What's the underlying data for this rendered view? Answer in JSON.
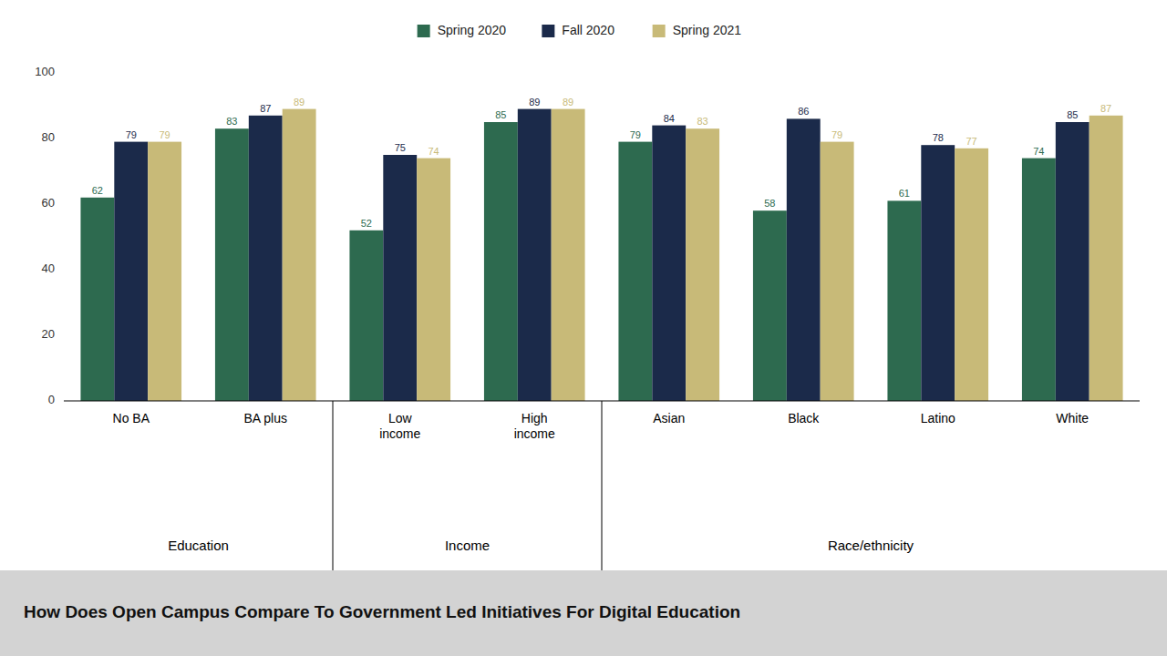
{
  "chart_data": {
    "type": "bar",
    "title": "How Does Open Campus Compare To Government Led Initiatives For Digital Education",
    "categories": [
      "No BA",
      "BA plus",
      "Low\nincome",
      "High\nincome",
      "Asian",
      "Black",
      "Latino",
      "White"
    ],
    "groups": [
      {
        "label": "Education",
        "categories": [
          "No BA",
          "BA plus"
        ]
      },
      {
        "label": "Income",
        "categories": [
          "Low\nincome",
          "High\nincome"
        ]
      },
      {
        "label": "Race/ethnicity",
        "categories": [
          "Asian",
          "Black",
          "Latino",
          "White"
        ]
      }
    ],
    "series": [
      {
        "name": "Spring 2020",
        "color": "#2d6a4f",
        "values": [
          62,
          83,
          52,
          85,
          79,
          58,
          61,
          74
        ]
      },
      {
        "name": "Fall 2020",
        "color": "#1b2a4a",
        "values": [
          79,
          87,
          75,
          89,
          84,
          86,
          78,
          85
        ]
      },
      {
        "name": "Spring 2021",
        "color": "#c8ba78",
        "values": [
          79,
          89,
          74,
          89,
          83,
          79,
          77,
          87
        ]
      }
    ],
    "ylim": [
      0,
      100
    ],
    "yticks": [
      0,
      20,
      40,
      60,
      80,
      100
    ],
    "grid": false,
    "legend": "top",
    "data_labels": true
  }
}
